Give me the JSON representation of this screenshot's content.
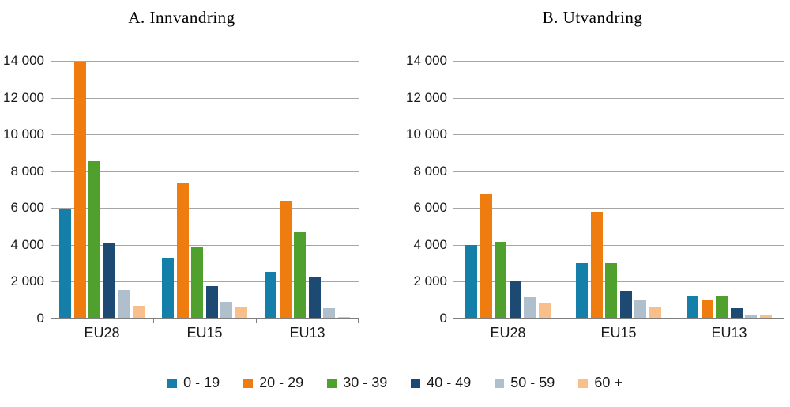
{
  "titles": {
    "chart_a": "A. Innvandring",
    "chart_b": "B. Utvandring"
  },
  "colors": {
    "age_0_19": "#147fa9",
    "age_20_29": "#ee7c0f",
    "age_30_39": "#50a02e",
    "age_40_49": "#1c4a72",
    "age_50_59": "#b0bfcc",
    "age_60_plus": "#f8bf8b",
    "gridline": "#a6a6a6",
    "axis": "#7f7f7f"
  },
  "chart_data": [
    {
      "type": "bar",
      "title": "A. Innvandring",
      "categories": [
        "EU28",
        "EU15",
        "EU13"
      ],
      "series": [
        {
          "name": "0 - 19",
          "color": "#147fa9",
          "values": [
            5950,
            3250,
            2550
          ]
        },
        {
          "name": "20 - 29",
          "color": "#ee7c0f",
          "values": [
            13900,
            7400,
            6400
          ]
        },
        {
          "name": "30 - 39",
          "color": "#50a02e",
          "values": [
            8550,
            3900,
            4700
          ]
        },
        {
          "name": "40 - 49",
          "color": "#1c4a72",
          "values": [
            4100,
            1750,
            2250
          ]
        },
        {
          "name": "50 - 59",
          "color": "#b0bfcc",
          "values": [
            1550,
            900,
            550
          ]
        },
        {
          "name": "60 +",
          "color": "#f8bf8b",
          "values": [
            700,
            600,
            80
          ]
        }
      ],
      "ylim": [
        0,
        14000
      ],
      "ytick_interval": 2000,
      "ytick_labels": [
        "0",
        "2 000",
        "4 000",
        "6 000",
        "8 000",
        "10 000",
        "12 000",
        "14 000"
      ],
      "grid": true,
      "axis_ticks_between_groups": true,
      "legend_position": "shared-bottom"
    },
    {
      "type": "bar",
      "title": "B. Utvandring",
      "categories": [
        "EU28",
        "EU15",
        "EU13"
      ],
      "series": [
        {
          "name": "0 - 19",
          "color": "#147fa9",
          "values": [
            4000,
            3000,
            1200
          ]
        },
        {
          "name": "20 - 29",
          "color": "#ee7c0f",
          "values": [
            6800,
            5800,
            1050
          ]
        },
        {
          "name": "30 - 39",
          "color": "#50a02e",
          "values": [
            4150,
            3000,
            1200
          ]
        },
        {
          "name": "40 - 49",
          "color": "#1c4a72",
          "values": [
            2050,
            1500,
            550
          ]
        },
        {
          "name": "50 - 59",
          "color": "#b0bfcc",
          "values": [
            1150,
            1000,
            200
          ]
        },
        {
          "name": "60 +",
          "color": "#f8bf8b",
          "values": [
            850,
            650,
            200
          ]
        }
      ],
      "ylim": [
        0,
        14000
      ],
      "ytick_interval": 2000,
      "ytick_labels": [
        "0",
        "2 000",
        "4 000",
        "6 000",
        "8 000",
        "10 000",
        "12 000",
        "14 000"
      ],
      "grid": true,
      "axis_ticks_between_groups": false,
      "legend_position": "shared-bottom"
    }
  ],
  "legend": {
    "items": [
      {
        "label": "0 - 19",
        "color": "#147fa9"
      },
      {
        "label": "20 - 29",
        "color": "#ee7c0f"
      },
      {
        "label": "30 - 39",
        "color": "#50a02e"
      },
      {
        "label": "40 - 49",
        "color": "#1c4a72"
      },
      {
        "label": "50 - 59",
        "color": "#b0bfcc"
      },
      {
        "label": "60 +",
        "color": "#f8bf8b"
      }
    ]
  }
}
